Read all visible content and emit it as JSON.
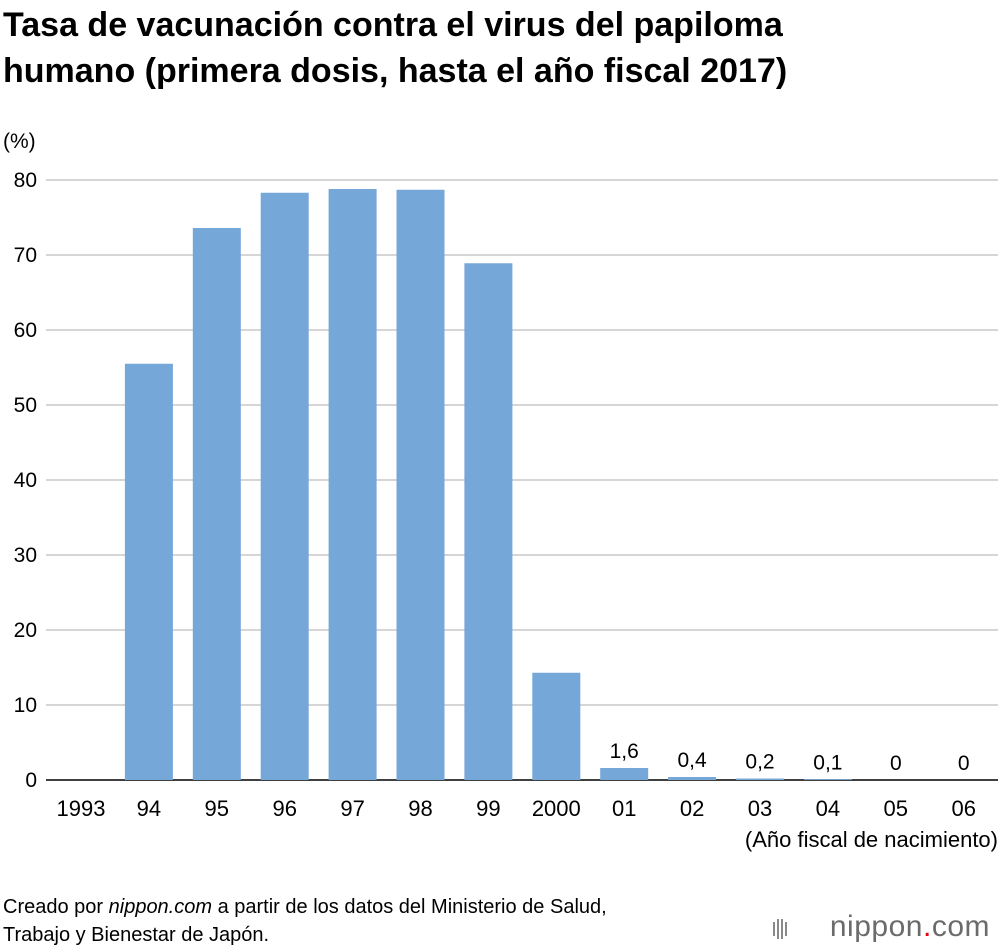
{
  "title_line1": "Tasa de vacunación contra el virus del papiloma",
  "title_line2": "humano (primera dosis, hasta el año fiscal 2017)",
  "chart_data": {
    "type": "bar",
    "title": "Tasa de vacunación contra el virus del papiloma humano (primera dosis, hasta el año fiscal 2017)",
    "ylabel": "(%)",
    "xlabel": "(Año fiscal de nacimiento)",
    "ylim": [
      0,
      80
    ],
    "yticks": [
      0,
      10,
      20,
      30,
      40,
      50,
      60,
      70,
      80
    ],
    "grid": true,
    "bar_color": "#75a7d9",
    "categories": [
      "1993",
      "94",
      "95",
      "96",
      "97",
      "98",
      "99",
      "2000",
      "01",
      "02",
      "03",
      "04",
      "05",
      "06"
    ],
    "values": [
      0,
      55.5,
      73.6,
      78.3,
      78.8,
      78.7,
      68.9,
      14.3,
      1.6,
      0.4,
      0.2,
      0.1,
      0,
      0
    ],
    "data_labels": [
      "",
      "",
      "",
      "",
      "",
      "",
      "",
      "",
      "1,6",
      "0,4",
      "0,2",
      "0,1",
      "0",
      "0"
    ]
  },
  "footer": {
    "prefix": "Creado por ",
    "source_site": "nippon.com",
    "suffix": " a partir de los datos del Ministerio de Salud,",
    "line2": "Trabajo y Bienestar de Japón."
  },
  "brand": {
    "name": "nippon",
    "dot": ".",
    "tld": "com"
  }
}
